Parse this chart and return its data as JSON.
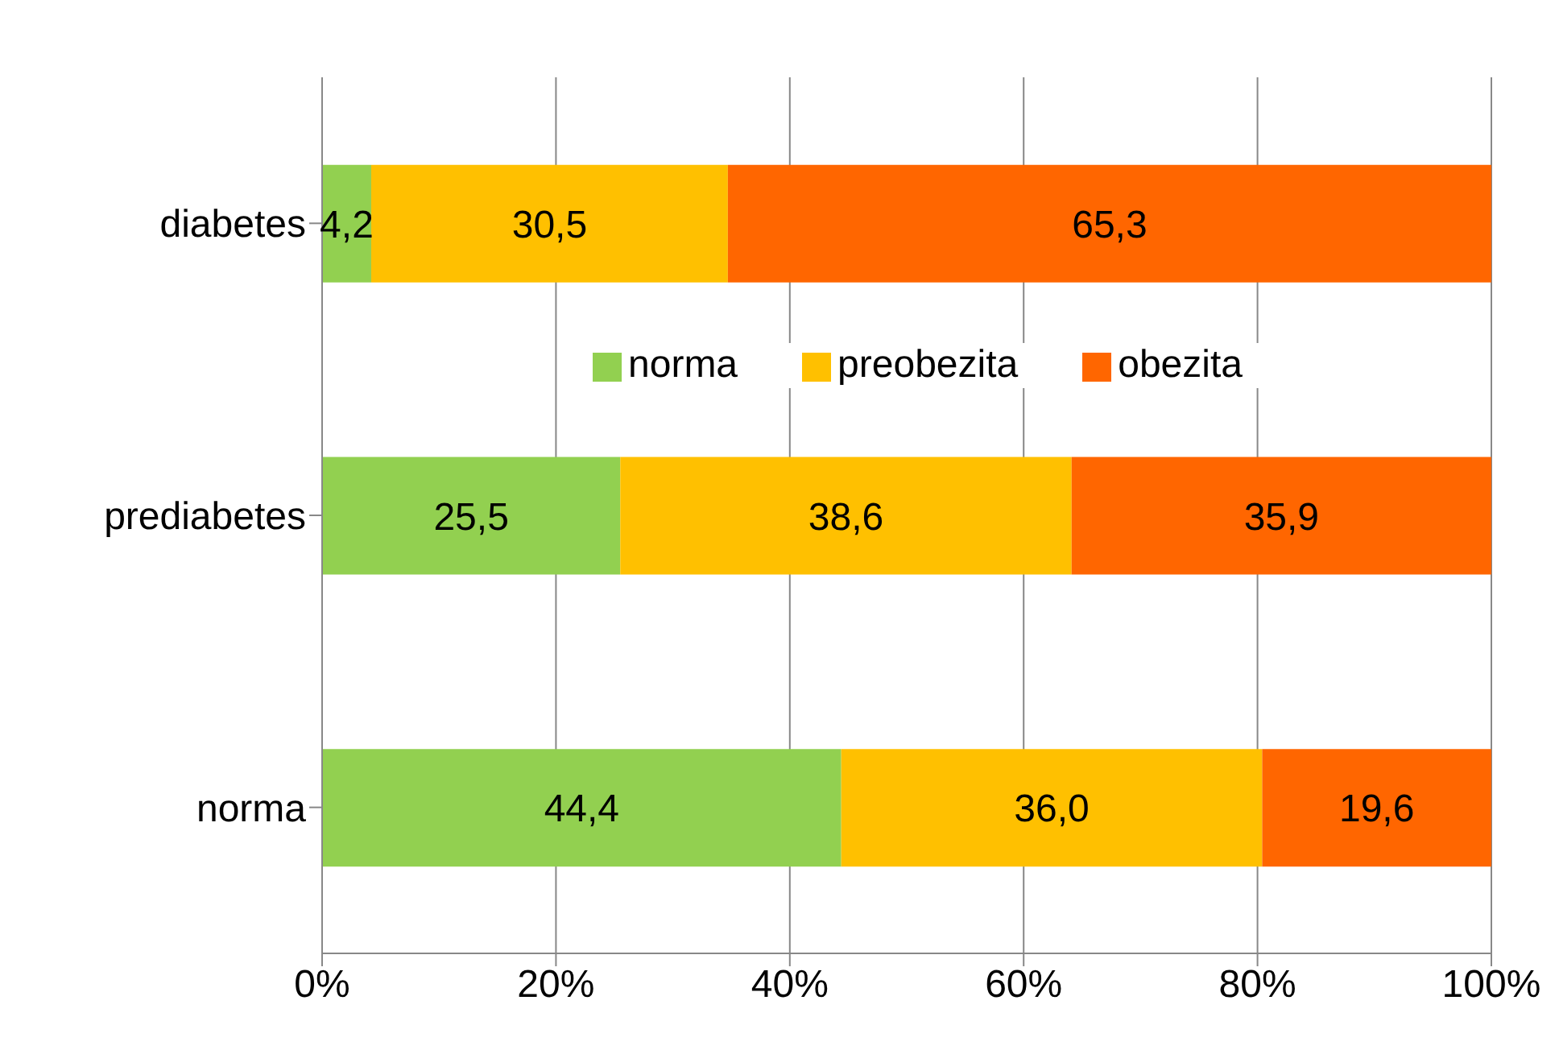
{
  "chart_data": {
    "type": "bar",
    "orientation": "horizontal",
    "stacked": true,
    "categories": [
      "diabetes",
      "prediabetes",
      "norma"
    ],
    "series": [
      {
        "name": "norma",
        "color": "#92d050",
        "values": [
          4.2,
          25.5,
          44.4
        ],
        "value_labels": [
          "4,2",
          "25,5",
          "44,4"
        ]
      },
      {
        "name": "preobezita",
        "color": "#ffc000",
        "values": [
          30.5,
          38.6,
          36.0
        ],
        "value_labels": [
          "30,5",
          "38,6",
          "36,0"
        ]
      },
      {
        "name": "obezita",
        "color": "#ff6600",
        "values": [
          65.3,
          35.9,
          19.6
        ],
        "value_labels": [
          "65,3",
          "35,9",
          "19,6"
        ]
      }
    ],
    "xlim": [
      0,
      100
    ],
    "xticks": [
      {
        "value": 0,
        "label": "0%"
      },
      {
        "value": 20,
        "label": "20%"
      },
      {
        "value": 40,
        "label": "40%"
      },
      {
        "value": 60,
        "label": "60%"
      },
      {
        "value": 80,
        "label": "80%"
      },
      {
        "value": 100,
        "label": "100%"
      }
    ],
    "grid": "x",
    "legend": "top right"
  }
}
